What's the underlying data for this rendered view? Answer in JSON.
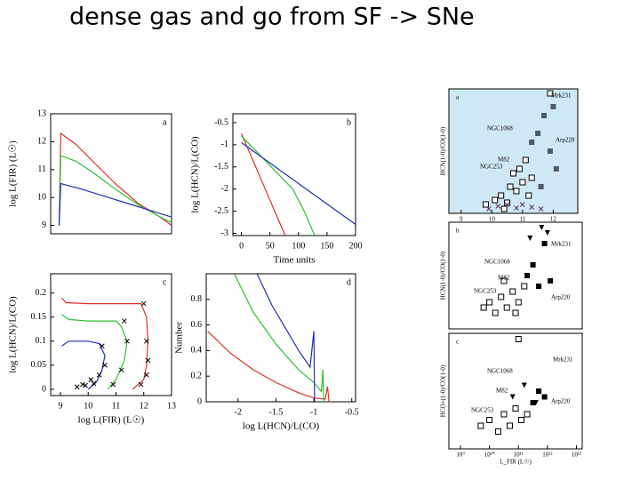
{
  "title": "dense gas and go from SF -> SNe",
  "chart_data": [
    {
      "type": "line",
      "panel_label": "a",
      "ylabel": "log L(FIR) (L☉)",
      "xlim": [
        -15,
        200
      ],
      "ylim": [
        8.7,
        13
      ],
      "yticks": [
        9,
        10,
        11,
        12,
        13
      ],
      "series": [
        {
          "color": "#e0302a",
          "style": "line",
          "x": [
            0,
            3,
            30,
            60,
            100,
            140,
            180,
            200
          ],
          "values": [
            9.0,
            12.3,
            11.9,
            11.3,
            10.5,
            9.8,
            9.3,
            9.0
          ]
        },
        {
          "color": "#2fc02f",
          "style": "line",
          "x": [
            0,
            3,
            30,
            60,
            100,
            140,
            180,
            200
          ],
          "values": [
            9.0,
            11.5,
            11.3,
            10.9,
            10.3,
            9.75,
            9.3,
            9.1
          ]
        },
        {
          "color": "#2030b0",
          "style": "line",
          "x": [
            0,
            3,
            40,
            80,
            120,
            160,
            200
          ],
          "values": [
            9.0,
            10.5,
            10.3,
            10.05,
            9.8,
            9.55,
            9.3
          ]
        }
      ]
    },
    {
      "type": "line",
      "panel_label": "b",
      "xlabel": "Time units",
      "ylabel": "log L(HCN)/L(CO)",
      "xlim": [
        -15,
        200
      ],
      "ylim": [
        -3.05,
        -0.3
      ],
      "xticks": [
        0,
        50,
        100,
        150,
        200
      ],
      "yticks": [
        -0.5,
        -1,
        -1.5,
        -2,
        -2.5,
        -3
      ],
      "series": [
        {
          "color": "#e0302a",
          "style": "line",
          "x": [
            0,
            20,
            40,
            60,
            80
          ],
          "values": [
            -0.75,
            -1.35,
            -1.95,
            -2.55,
            -3.15
          ]
        },
        {
          "color": "#2fc02f",
          "style": "line",
          "x": [
            0,
            30,
            60,
            90,
            110,
            130
          ],
          "values": [
            -0.8,
            -1.2,
            -1.6,
            -2.0,
            -2.5,
            -3.1
          ]
        },
        {
          "color": "#2030b0",
          "style": "line",
          "x": [
            0,
            200
          ],
          "values": [
            -0.95,
            -2.8
          ]
        }
      ]
    },
    {
      "type": "line",
      "panel_label": "c",
      "xlabel": "log L(FIR) (L☉)",
      "ylabel": "log L(HCN)/L(CO)",
      "xlim": [
        8.65,
        13
      ],
      "ylim": [
        -0.013,
        0.24
      ],
      "xticks": [
        9,
        10,
        11,
        12,
        13
      ],
      "yticks": [
        0,
        0.05,
        0.1,
        0.15,
        0.2
      ],
      "series": [
        {
          "color": "#e0302a",
          "style": "line",
          "x": [
            9.05,
            9.2,
            10,
            11,
            11.9,
            12.1,
            12.15,
            12.1,
            12.0,
            11.6
          ],
          "values": [
            0.19,
            0.18,
            0.178,
            0.178,
            0.178,
            0.15,
            0.1,
            0.05,
            0.02,
            0.0
          ]
        },
        {
          "color": "#2fc02f",
          "style": "line",
          "x": [
            9.05,
            9.3,
            10,
            11,
            11.2,
            11.4,
            11.3,
            11.0,
            10.7
          ],
          "values": [
            0.155,
            0.145,
            0.142,
            0.142,
            0.13,
            0.1,
            0.06,
            0.02,
            0.0
          ]
        },
        {
          "color": "#2030b0",
          "style": "line",
          "x": [
            9.05,
            9.3,
            10,
            10.4,
            10.6,
            10.5,
            10.3,
            10.0
          ],
          "values": [
            0.09,
            0.1,
            0.1,
            0.095,
            0.07,
            0.04,
            0.015,
            0.0
          ]
        },
        {
          "color": "#000000",
          "style": "x",
          "x": [
            12.0,
            12.1,
            12.15,
            12.1,
            11.9,
            11.3,
            11.4,
            11.2,
            10.9,
            10.5,
            10.6,
            10.4,
            10.1,
            9.8,
            9.6,
            9.9,
            10.2
          ],
          "values": [
            0.178,
            0.1,
            0.06,
            0.03,
            0.01,
            0.142,
            0.1,
            0.04,
            0.01,
            0.09,
            0.05,
            0.03,
            0.02,
            0.01,
            0.005,
            0.008,
            0.012
          ]
        }
      ]
    },
    {
      "type": "line",
      "panel_label": "d",
      "xlabel": "log L(HCN)/L(CO)",
      "ylabel": "Number",
      "xlim": [
        -2.42,
        -0.45
      ],
      "ylim": [
        0,
        1.0
      ],
      "xticks": [
        -2,
        -1.5,
        -1,
        -0.5
      ],
      "yticks": [
        0,
        0.2,
        0.4,
        0.6,
        0.8
      ],
      "series": [
        {
          "color": "#e0302a",
          "style": "line",
          "x": [
            -2.4,
            -2.1,
            -1.8,
            -1.5,
            -1.2,
            -1.0,
            -0.85,
            -0.82,
            -0.8
          ],
          "values": [
            0.55,
            0.38,
            0.25,
            0.15,
            0.07,
            0.03,
            0.02,
            0.12,
            0.0
          ]
        },
        {
          "color": "#2fc02f",
          "style": "line",
          "x": [
            -2.05,
            -1.8,
            -1.5,
            -1.2,
            -1.0,
            -0.9,
            -0.88,
            -0.87
          ],
          "values": [
            1.0,
            0.7,
            0.45,
            0.25,
            0.15,
            0.08,
            0.25,
            0.0
          ]
        },
        {
          "color": "#2030b0",
          "style": "line",
          "x": [
            -1.75,
            -1.55,
            -1.4,
            -1.2,
            -1.05,
            -1.0,
            -0.99
          ],
          "values": [
            1.0,
            0.75,
            0.6,
            0.4,
            0.27,
            0.55,
            0.0
          ]
        }
      ]
    },
    {
      "type": "scatter",
      "panel_label": "a",
      "ylabel": "HCN(1-0)/CO(1-0)",
      "xlim": [
        8.6,
        12.8
      ],
      "ylim": [
        0,
        1.4
      ],
      "xticks": [
        9,
        10,
        11,
        12
      ],
      "annotations": [
        "Mrk231",
        "NGC1068",
        "M82",
        "NGC253",
        "Arp220"
      ],
      "background": "#cfe8f5",
      "series": [
        {
          "color": "#000000",
          "style": "open-square",
          "x": [
            9.8,
            10.1,
            10.3,
            10.5,
            10.6,
            10.8,
            10.9,
            11.0,
            11.1,
            11.3,
            10.4,
            10.7,
            11.2,
            11.9
          ],
          "values": [
            0.1,
            0.15,
            0.2,
            0.12,
            0.3,
            0.25,
            0.5,
            0.35,
            0.6,
            0.4,
            0.05,
            0.45,
            0.2,
            1.35
          ]
        },
        {
          "color": "#505a66",
          "style": "filled-square",
          "x": [
            11.5,
            11.7,
            11.9,
            12.1,
            11.3,
            11.6,
            12.0
          ],
          "values": [
            0.9,
            1.1,
            0.7,
            0.5,
            0.8,
            0.3,
            1.2
          ]
        },
        {
          "color": "#603060",
          "style": "x",
          "x": [
            9.9,
            10.2,
            10.5,
            10.8,
            11.0,
            11.3,
            11.6
          ],
          "values": [
            0.05,
            0.08,
            0.1,
            0.06,
            0.1,
            0.07,
            0.05
          ]
        }
      ]
    },
    {
      "type": "scatter",
      "panel_label": "b",
      "ylabel": "HCN(1-0)/CO(1-0)",
      "xlim": [
        8.6,
        13.2
      ],
      "ylim": [
        0,
        1
      ],
      "annotations": [
        "Mrk231",
        "NGC1068",
        "M82",
        "NGC253",
        "Arp220"
      ],
      "series": [
        {
          "color": "#000000",
          "style": "open-square",
          "x": [
            9.8,
            10.0,
            10.2,
            10.4,
            10.6,
            10.8,
            11.0,
            11.2,
            10.5,
            10.9
          ],
          "values": [
            0.2,
            0.25,
            0.15,
            0.3,
            0.2,
            0.35,
            0.25,
            0.4,
            0.45,
            0.15
          ]
        },
        {
          "color": "#000000",
          "style": "filled-square",
          "x": [
            11.3,
            11.5,
            11.7,
            11.9,
            12.1
          ],
          "values": [
            0.5,
            0.6,
            0.4,
            0.8,
            0.45
          ]
        },
        {
          "color": "#000000",
          "style": "triangle",
          "x": [
            11.4,
            11.8,
            12.0
          ],
          "values": [
            0.85,
            0.95,
            0.9
          ]
        }
      ]
    },
    {
      "type": "scatter",
      "panel_label": "c",
      "ylabel": "HCO+(1-0)/CO(1-0)",
      "xlabel": "L_FIR (L☉)",
      "xlim": [
        8.6,
        13.2
      ],
      "ylim": [
        0,
        1
      ],
      "xticks": [
        {
          "value": 9,
          "label": "10⁹"
        },
        {
          "value": 10,
          "label": "10¹⁰"
        },
        {
          "value": 11,
          "label": "10¹¹"
        },
        {
          "value": 12,
          "label": "10¹²"
        },
        {
          "value": 13,
          "label": "10¹³"
        }
      ],
      "annotations": [
        "Mrk231",
        "NGC1068",
        "M82",
        "NGC253",
        "Arp220"
      ],
      "series": [
        {
          "color": "#000000",
          "style": "open-square",
          "x": [
            9.7,
            10.0,
            10.3,
            10.5,
            10.7,
            10.9,
            11.1,
            11.3,
            11.0
          ],
          "values": [
            0.2,
            0.25,
            0.15,
            0.3,
            0.2,
            0.35,
            0.25,
            0.3,
            0.95
          ]
        },
        {
          "color": "#000000",
          "style": "filled-square",
          "x": [
            11.5,
            11.7,
            11.9
          ],
          "values": [
            0.4,
            0.5,
            0.45
          ]
        },
        {
          "color": "#000000",
          "style": "triangle",
          "x": [
            10.8,
            11.2,
            11.6
          ],
          "values": [
            0.45,
            0.55,
            0.4
          ]
        }
      ]
    }
  ]
}
